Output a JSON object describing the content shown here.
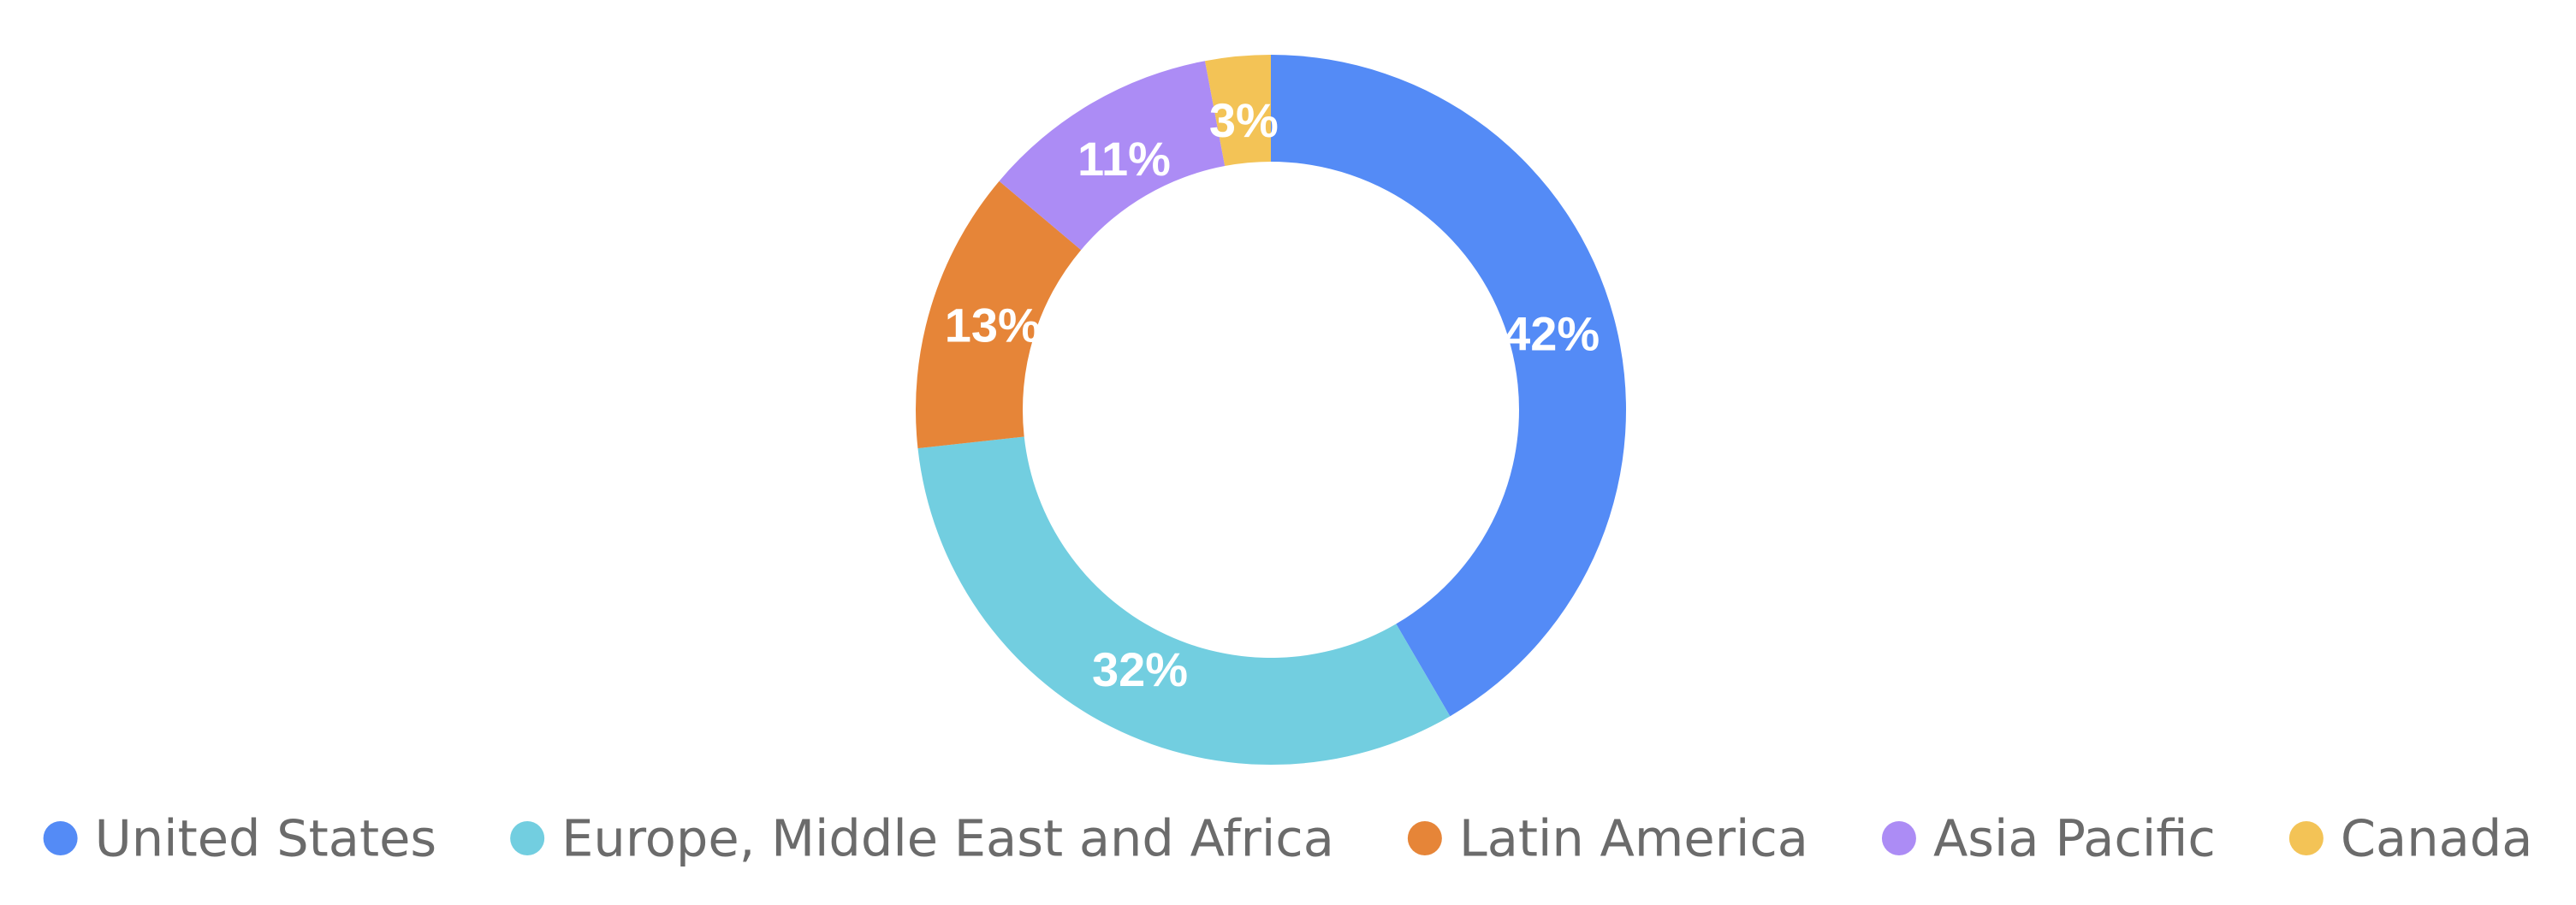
{
  "chart_data": {
    "type": "pie",
    "variant": "donut",
    "legend_position": "bottom",
    "slices": [
      {
        "name": "United States",
        "value": 42,
        "label": "42%",
        "color": "#548bf6"
      },
      {
        "name": "Europe, Middle East and Africa",
        "value": 32,
        "label": "32%",
        "color": "#72cee0"
      },
      {
        "name": "Latin America",
        "value": 13,
        "label": "13%",
        "color": "#e68538"
      },
      {
        "name": "Asia Pacific",
        "value": 11,
        "label": "11%",
        "color": "#ac8cf5"
      },
      {
        "name": "Canada",
        "value": 3,
        "label": "3%",
        "color": "#f3c356"
      }
    ]
  }
}
